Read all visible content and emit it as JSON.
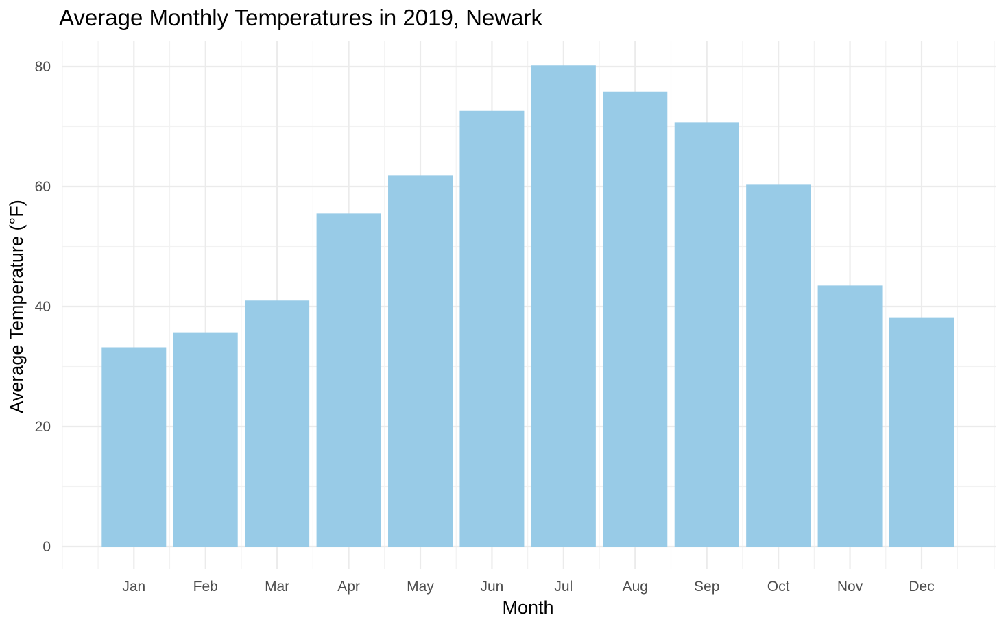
{
  "chart_data": {
    "type": "bar",
    "title": "Average Monthly Temperatures in 2019, Newark",
    "xlabel": "Month",
    "ylabel": "Average Temperature (°F)",
    "categories": [
      "Jan",
      "Feb",
      "Mar",
      "Apr",
      "May",
      "Jun",
      "Jul",
      "Aug",
      "Sep",
      "Oct",
      "Nov",
      "Dec"
    ],
    "values": [
      33.2,
      35.7,
      41.0,
      55.5,
      61.9,
      72.6,
      80.2,
      75.8,
      70.7,
      60.3,
      43.5,
      38.1
    ],
    "ylim": [
      0,
      84
    ],
    "yticks": [
      0,
      20,
      40,
      60,
      80
    ],
    "grid": true,
    "legend": "none",
    "bar_color": "#98cbe7"
  }
}
